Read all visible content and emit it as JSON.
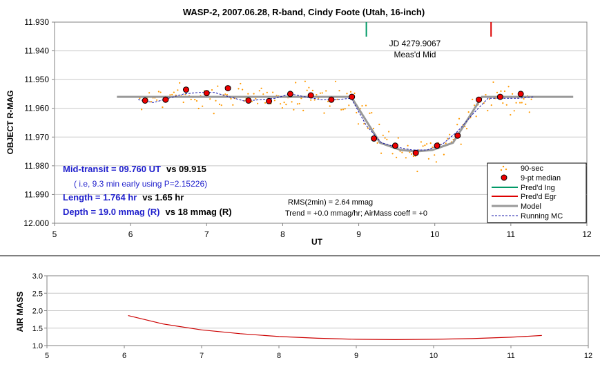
{
  "chart_data": [
    {
      "type": "scatter",
      "title": "WASP-2, 2007.06.28, R-band, Cindy Foote (Utah, 16-inch)",
      "xlabel": "UT",
      "ylabel": "OBJECT R-MAG",
      "xlim": [
        5,
        12
      ],
      "ylim": [
        11.93,
        12.0
      ],
      "y_inverted": true,
      "grid": "horizontal",
      "xticks": [
        "5",
        "6",
        "7",
        "8",
        "9",
        "10",
        "11",
        "12"
      ],
      "yticks": [
        "11.930",
        "11.940",
        "11.950",
        "11.960",
        "11.970",
        "11.980",
        "11.990",
        "12.000"
      ],
      "legend": {
        "placement": "bottom-right",
        "entries": [
          "90-sec",
          "9-pt median",
          "Pred'd Ing",
          "Pred'd Egr",
          "Model",
          "Running MC"
        ]
      },
      "colors": {
        "raw": "#ff9900",
        "median_fill": "#ee0000",
        "ingress": "#009966",
        "egress": "#dd0000",
        "model": "#999999",
        "running": "#1a1aaa",
        "text_blue": "#1f1fcc"
      },
      "annotations": {
        "jd": "JD 4279.9067",
        "meas_mid": "Meas'd Mid",
        "mid_transit": "Mid-transit = 09.760 UT",
        "mid_transit_vs": "vs 09.915",
        "early_note": "( i.e, 9.3 min early using P=2.15226)",
        "length": "Length = 1.764 hr",
        "length_vs": "vs 1.65 hr",
        "depth": "Depth = 19.0 mmag (R)",
        "depth_vs": "vs 18 mmag (R)",
        "rms": "RMS(2min) = 2.64 mmag",
        "trend": "Trend = +0.0 mmag/hr; AirMass coeff = +0"
      },
      "series": [
        {
          "name": "9-pt median",
          "x": [
            6.19,
            6.46,
            6.73,
            7.0,
            7.28,
            7.55,
            7.82,
            8.1,
            8.37,
            8.64,
            8.91,
            9.2,
            9.48,
            9.75,
            10.03,
            10.3,
            10.58,
            10.86,
            11.13
          ],
          "y": [
            11.9573,
            11.957,
            11.9535,
            11.9547,
            11.953,
            11.9573,
            11.9575,
            11.955,
            11.9555,
            11.957,
            11.956,
            11.9705,
            11.973,
            11.9755,
            11.973,
            11.9695,
            11.957,
            11.956,
            11.955
          ]
        },
        {
          "name": "Model",
          "x": [
            5.82,
            8.9,
            9.28,
            9.55,
            9.76,
            9.97,
            10.24,
            10.62,
            11.82
          ],
          "y": [
            11.956,
            11.956,
            11.972,
            11.9745,
            11.975,
            11.9745,
            11.972,
            11.956,
            11.956
          ]
        },
        {
          "name": "Running MC",
          "x": [
            6.1,
            6.3,
            6.5,
            6.7,
            6.9,
            7.1,
            7.3,
            7.5,
            7.7,
            7.9,
            8.1,
            8.3,
            8.5,
            8.7,
            8.9,
            9.1,
            9.3,
            9.5,
            9.7,
            9.9,
            10.1,
            10.3,
            10.5,
            10.7,
            10.9,
            11.1,
            11.3
          ],
          "y": [
            11.957,
            11.958,
            11.9565,
            11.955,
            11.9545,
            11.9545,
            11.956,
            11.9575,
            11.957,
            11.9565,
            11.955,
            11.956,
            11.957,
            11.957,
            11.9565,
            11.966,
            11.972,
            11.9735,
            11.9745,
            11.9745,
            11.9725,
            11.968,
            11.962,
            11.9565,
            11.9565,
            11.9565,
            11.956
          ]
        }
      ],
      "predicted_ingress_ut": 9.1,
      "predicted_egress_ut": 10.74
    },
    {
      "type": "line",
      "title": "",
      "xlabel": "",
      "ylabel": "AIR MASS",
      "xlim": [
        5,
        12
      ],
      "ylim": [
        1.0,
        3.0
      ],
      "xticks": [
        "5",
        "6",
        "7",
        "8",
        "9",
        "10",
        "11",
        "12"
      ],
      "yticks": [
        "1.0",
        "1.5",
        "2.0",
        "2.5",
        "3.0"
      ],
      "grid": "horizontal",
      "color": "#cc0000",
      "series": [
        {
          "x": [
            6.05,
            6.5,
            7.0,
            7.5,
            8.0,
            8.5,
            9.0,
            9.5,
            10.0,
            10.5,
            11.0,
            11.4
          ],
          "y": [
            1.86,
            1.62,
            1.45,
            1.34,
            1.26,
            1.21,
            1.18,
            1.17,
            1.18,
            1.2,
            1.24,
            1.29
          ]
        }
      ]
    }
  ]
}
